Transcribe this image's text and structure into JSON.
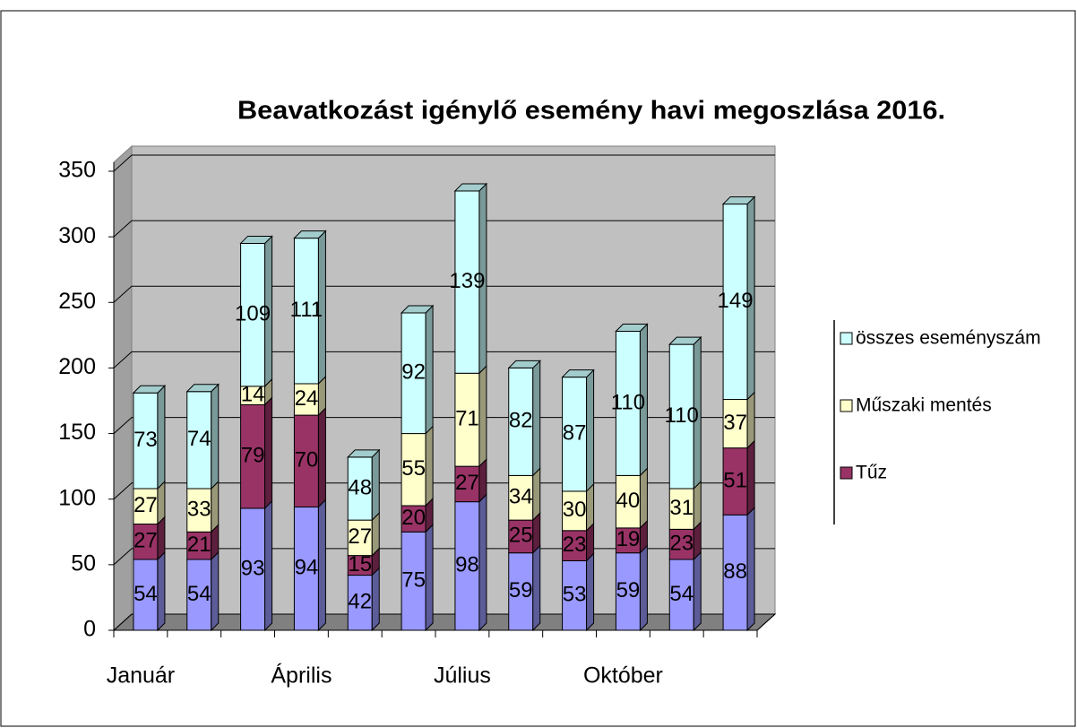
{
  "chart_data": {
    "type": "bar",
    "stacked": true,
    "three_d": true,
    "title": "Beavatkozást igénylő esemény  havi megoszlása 2016.",
    "categories": [
      "Január",
      null,
      null,
      "Április",
      null,
      null,
      "Július",
      null,
      null,
      "Október",
      null,
      null
    ],
    "series": [
      {
        "color": "#9999ff",
        "values": [
          54,
          54,
          93,
          94,
          42,
          75,
          98,
          59,
          53,
          59,
          54,
          88
        ]
      },
      {
        "name": "Tűz",
        "color": "#993366",
        "values": [
          27,
          21,
          79,
          70,
          15,
          20,
          27,
          25,
          23,
          19,
          23,
          51
        ]
      },
      {
        "name": "Műszaki mentés",
        "color": "#ffffcc",
        "values": [
          27,
          33,
          14,
          24,
          27,
          55,
          71,
          34,
          30,
          40,
          31,
          37
        ]
      },
      {
        "name": "összes eseményszám",
        "color": "#ccffff",
        "values": [
          73,
          74,
          109,
          111,
          48,
          92,
          139,
          82,
          87,
          110,
          110,
          149
        ]
      }
    ],
    "ylim": [
      0,
      350
    ],
    "yticks": [
      0,
      50,
      100,
      150,
      200,
      250,
      300,
      350
    ],
    "grid": true,
    "legend": "right"
  }
}
